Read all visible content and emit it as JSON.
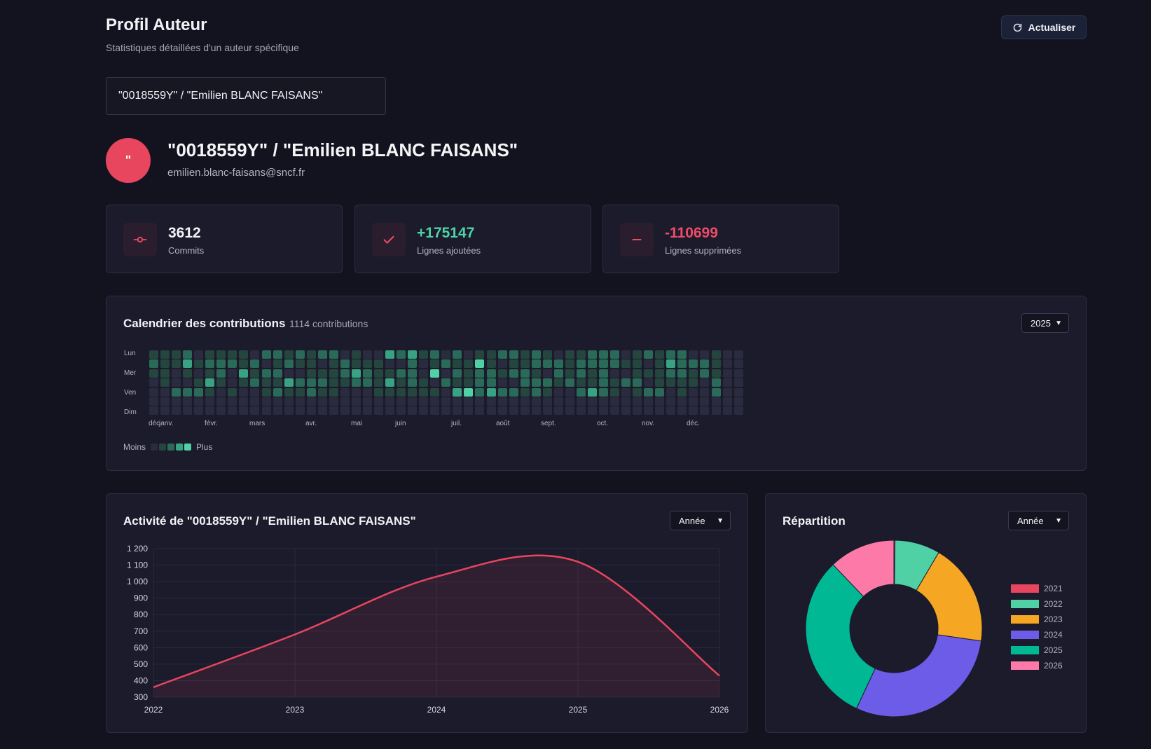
{
  "header": {
    "title": "Profil Auteur",
    "subtitle": "Statistiques détaillées d'un auteur spécifique",
    "refresh_label": "Actualiser"
  },
  "author_select": {
    "value": "\"0018559Y\" / \"Emilien BLANC FAISANS\""
  },
  "author": {
    "avatar_initial": "\"",
    "name": "\"0018559Y\" / \"Emilien BLANC FAISANS\"",
    "email": "emilien.blanc-faisans@sncf.fr"
  },
  "stats": [
    {
      "value": "3612",
      "label": "Commits",
      "color": "#f2f2f6",
      "icon": "commit-icon"
    },
    {
      "value": "+175147",
      "label": "Lignes ajoutées",
      "color": "#4fd1a5",
      "icon": "check-icon"
    },
    {
      "value": "-110699",
      "label": "Lignes supprimées",
      "color": "#ef4b66",
      "icon": "minus-icon"
    }
  ],
  "calendar": {
    "title": "Calendrier des contributions",
    "count_label": "1114 contributions",
    "year_selected": "2025",
    "day_labels": [
      "Lun",
      "Mer",
      "Ven",
      "Dim"
    ],
    "month_labels": [
      "déc",
      "janv.",
      "févr.",
      "mars",
      "avr.",
      "mai",
      "juin",
      "juil.",
      "août",
      "sept.",
      "oct.",
      "nov.",
      "déc."
    ],
    "legend_less": "Moins",
    "legend_more": "Plus",
    "level_colors": [
      "#2b2b40",
      "#24463f",
      "#2a6a58",
      "#38a383",
      "#4fd1a5"
    ]
  },
  "activity": {
    "title": "Activité de \"0018559Y\" / \"Emilien BLANC FAISANS\"",
    "period_selected": "Année"
  },
  "distribution": {
    "title": "Répartition",
    "period_selected": "Année"
  },
  "colors": {
    "accent": "#e8455f",
    "green": "#4fd1a5"
  },
  "chart_data": [
    {
      "type": "area",
      "x": [
        "2022",
        "2023",
        "2024",
        "2025",
        "2026"
      ],
      "y_ticks": [
        "1 200",
        "1 100",
        "1 000",
        "900",
        "800",
        "700",
        "600",
        "500",
        "400",
        "300"
      ],
      "ylim": [
        300,
        1200
      ],
      "series": [
        {
          "values": [
            360,
            680,
            1030,
            1120,
            430
          ],
          "color": "#e8455f"
        }
      ]
    },
    {
      "type": "pie",
      "labels": [
        "2021",
        "2022",
        "2023",
        "2024",
        "2025",
        "2026"
      ],
      "values": [
        1,
        41,
        93,
        147,
        153,
        60
      ],
      "colors": [
        "#e8455f",
        "#4fd1a5",
        "#f5a623",
        "#6c5ce7",
        "#00b894",
        "#fd79a8"
      ]
    }
  ]
}
